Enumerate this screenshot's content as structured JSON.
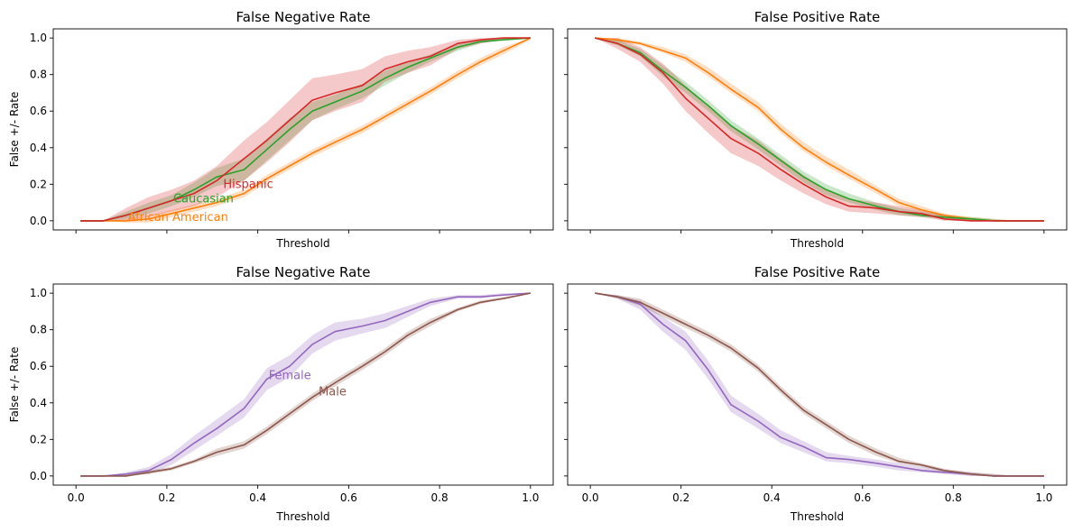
{
  "chart_data": [
    {
      "type": "line",
      "title": "False Negative Rate",
      "xlabel": "Threshold",
      "ylabel": "False +/- Rate",
      "xlim": [
        -0.05,
        1.05
      ],
      "ylim": [
        -0.05,
        1.05
      ],
      "xticks": [
        0.0,
        0.2,
        0.4,
        0.6,
        0.8,
        1.0
      ],
      "xtick_labels_visible": false,
      "yticks": [
        0.0,
        0.2,
        0.4,
        0.6,
        0.8,
        1.0
      ],
      "ytick_labels": [
        "0.0",
        "0.2",
        "0.4",
        "0.6",
        "0.8",
        "1.0"
      ],
      "grid": false,
      "legend": "inline labels",
      "x": [
        0.01,
        0.06,
        0.11,
        0.16,
        0.21,
        0.26,
        0.31,
        0.37,
        0.42,
        0.47,
        0.52,
        0.57,
        0.63,
        0.68,
        0.73,
        0.78,
        0.84,
        0.89,
        0.94,
        1.0
      ],
      "series": [
        {
          "name": "African American",
          "color": "#ff7f0e",
          "label_value": [
            0.11,
            0.0
          ],
          "values": [
            0.0,
            0.0,
            0.0,
            0.01,
            0.04,
            0.07,
            0.1,
            0.15,
            0.23,
            0.3,
            0.37,
            0.43,
            0.5,
            0.57,
            0.64,
            0.71,
            0.8,
            0.87,
            0.93,
            1.0
          ],
          "lower": [
            0.0,
            0.0,
            -0.01,
            -0.01,
            0.02,
            0.05,
            0.08,
            0.13,
            0.21,
            0.28,
            0.35,
            0.41,
            0.48,
            0.55,
            0.62,
            0.69,
            0.78,
            0.85,
            0.91,
            0.99
          ],
          "upper": [
            0.0,
            0.0,
            0.01,
            0.03,
            0.06,
            0.09,
            0.12,
            0.17,
            0.25,
            0.32,
            0.39,
            0.45,
            0.52,
            0.59,
            0.66,
            0.73,
            0.82,
            0.89,
            0.95,
            1.0
          ]
        },
        {
          "name": "Caucasian",
          "color": "#2ca02c",
          "label_value": [
            0.21,
            0.1
          ],
          "values": [
            0.0,
            0.0,
            0.03,
            0.07,
            0.11,
            0.17,
            0.24,
            0.28,
            0.39,
            0.5,
            0.6,
            0.65,
            0.71,
            0.78,
            0.84,
            0.89,
            0.95,
            0.98,
            0.99,
            1.0
          ],
          "lower": [
            0.0,
            0.0,
            0.01,
            0.04,
            0.08,
            0.13,
            0.19,
            0.22,
            0.33,
            0.44,
            0.55,
            0.61,
            0.67,
            0.74,
            0.81,
            0.87,
            0.93,
            0.97,
            0.99,
            1.0
          ],
          "upper": [
            0.0,
            0.0,
            0.05,
            0.1,
            0.14,
            0.21,
            0.29,
            0.34,
            0.45,
            0.56,
            0.65,
            0.69,
            0.75,
            0.82,
            0.87,
            0.91,
            0.97,
            0.99,
            1.0,
            1.0
          ]
        },
        {
          "name": "Hispanic",
          "color": "#d62728",
          "label_value": [
            0.32,
            0.18
          ],
          "values": [
            0.0,
            0.0,
            0.03,
            0.07,
            0.11,
            0.15,
            0.22,
            0.34,
            0.44,
            0.55,
            0.66,
            0.7,
            0.74,
            0.83,
            0.87,
            0.9,
            0.97,
            0.99,
            1.0,
            1.0
          ],
          "lower": [
            0.0,
            0.0,
            0.0,
            0.02,
            0.05,
            0.08,
            0.13,
            0.22,
            0.32,
            0.43,
            0.55,
            0.6,
            0.65,
            0.76,
            0.81,
            0.85,
            0.94,
            0.97,
            0.99,
            1.0
          ],
          "upper": [
            0.0,
            0.0,
            0.07,
            0.13,
            0.17,
            0.22,
            0.3,
            0.44,
            0.54,
            0.66,
            0.78,
            0.8,
            0.83,
            0.9,
            0.93,
            0.95,
            0.99,
            1.0,
            1.0,
            1.0
          ]
        }
      ]
    },
    {
      "type": "line",
      "title": "False Positive Rate",
      "xlabel": "Threshold",
      "ylabel": "",
      "xlim": [
        -0.05,
        1.05
      ],
      "ylim": [
        -0.05,
        1.05
      ],
      "xticks": [
        0.0,
        0.2,
        0.4,
        0.6,
        0.8,
        1.0
      ],
      "xtick_labels_visible": false,
      "yticks": [
        0.0,
        0.2,
        0.4,
        0.6,
        0.8,
        1.0
      ],
      "ytick_labels_visible": false,
      "grid": false,
      "x": [
        0.01,
        0.06,
        0.11,
        0.16,
        0.21,
        0.26,
        0.31,
        0.37,
        0.42,
        0.47,
        0.52,
        0.57,
        0.63,
        0.68,
        0.73,
        0.78,
        0.84,
        0.89,
        0.94,
        1.0
      ],
      "series": [
        {
          "name": "African American",
          "color": "#ff7f0e",
          "values": [
            1.0,
            0.99,
            0.97,
            0.93,
            0.89,
            0.81,
            0.72,
            0.62,
            0.5,
            0.4,
            0.32,
            0.25,
            0.17,
            0.1,
            0.06,
            0.03,
            0.01,
            0.0,
            0.0,
            0.0
          ],
          "lower": [
            1.0,
            0.98,
            0.96,
            0.92,
            0.87,
            0.79,
            0.7,
            0.6,
            0.48,
            0.38,
            0.3,
            0.23,
            0.15,
            0.08,
            0.05,
            0.02,
            0.0,
            0.0,
            0.0,
            0.0
          ],
          "upper": [
            1.0,
            1.0,
            0.98,
            0.95,
            0.91,
            0.84,
            0.75,
            0.65,
            0.53,
            0.43,
            0.35,
            0.28,
            0.19,
            0.12,
            0.08,
            0.04,
            0.02,
            0.01,
            0.0,
            0.0
          ]
        },
        {
          "name": "Caucasian",
          "color": "#2ca02c",
          "values": [
            1.0,
            0.97,
            0.92,
            0.82,
            0.73,
            0.63,
            0.52,
            0.42,
            0.33,
            0.24,
            0.17,
            0.12,
            0.08,
            0.05,
            0.03,
            0.02,
            0.01,
            0.0,
            0.0,
            0.0
          ],
          "lower": [
            1.0,
            0.96,
            0.9,
            0.79,
            0.7,
            0.6,
            0.49,
            0.39,
            0.3,
            0.21,
            0.14,
            0.1,
            0.06,
            0.03,
            0.02,
            0.01,
            0.0,
            0.0,
            0.0,
            0.0
          ],
          "upper": [
            1.0,
            0.99,
            0.94,
            0.85,
            0.76,
            0.66,
            0.55,
            0.45,
            0.36,
            0.27,
            0.2,
            0.15,
            0.1,
            0.07,
            0.05,
            0.03,
            0.02,
            0.01,
            0.0,
            0.0
          ]
        },
        {
          "name": "Hispanic",
          "color": "#d62728",
          "values": [
            1.0,
            0.97,
            0.91,
            0.81,
            0.67,
            0.56,
            0.45,
            0.37,
            0.28,
            0.2,
            0.13,
            0.08,
            0.07,
            0.05,
            0.04,
            0.01,
            0.0,
            0.0,
            0.0,
            0.0
          ],
          "lower": [
            1.0,
            0.94,
            0.87,
            0.75,
            0.6,
            0.48,
            0.37,
            0.3,
            0.22,
            0.15,
            0.09,
            0.05,
            0.04,
            0.03,
            0.02,
            0.0,
            0.0,
            0.0,
            0.0,
            0.0
          ],
          "upper": [
            1.0,
            1.0,
            0.95,
            0.86,
            0.74,
            0.63,
            0.52,
            0.44,
            0.34,
            0.25,
            0.17,
            0.12,
            0.1,
            0.08,
            0.06,
            0.03,
            0.01,
            0.0,
            0.0,
            0.0
          ]
        }
      ]
    },
    {
      "type": "line",
      "title": "False Negative Rate",
      "xlabel": "Threshold",
      "ylabel": "False +/- Rate",
      "xlim": [
        -0.05,
        1.05
      ],
      "ylim": [
        -0.05,
        1.05
      ],
      "xticks": [
        0.0,
        0.2,
        0.4,
        0.6,
        0.8,
        1.0
      ],
      "xtick_labels": [
        "0.0",
        "0.2",
        "0.4",
        "0.6",
        "0.8",
        "1.0"
      ],
      "yticks": [
        0.0,
        0.2,
        0.4,
        0.6,
        0.8,
        1.0
      ],
      "ytick_labels": [
        "0.0",
        "0.2",
        "0.4",
        "0.6",
        "0.8",
        "1.0"
      ],
      "grid": false,
      "legend": "inline labels",
      "x": [
        0.01,
        0.06,
        0.11,
        0.16,
        0.21,
        0.26,
        0.31,
        0.37,
        0.42,
        0.47,
        0.52,
        0.57,
        0.63,
        0.68,
        0.73,
        0.78,
        0.84,
        0.89,
        0.94,
        1.0
      ],
      "series": [
        {
          "name": "Female",
          "color": "#9467bd",
          "label_value": [
            0.42,
            0.53
          ],
          "values": [
            0.0,
            0.0,
            0.01,
            0.03,
            0.09,
            0.18,
            0.26,
            0.37,
            0.53,
            0.6,
            0.72,
            0.79,
            0.82,
            0.85,
            0.9,
            0.95,
            0.98,
            0.98,
            0.99,
            1.0
          ],
          "lower": [
            0.0,
            0.0,
            0.0,
            0.01,
            0.06,
            0.14,
            0.22,
            0.32,
            0.47,
            0.54,
            0.67,
            0.74,
            0.78,
            0.81,
            0.87,
            0.93,
            0.97,
            0.97,
            0.99,
            1.0
          ],
          "upper": [
            0.0,
            0.0,
            0.02,
            0.05,
            0.12,
            0.22,
            0.31,
            0.42,
            0.59,
            0.66,
            0.77,
            0.84,
            0.86,
            0.89,
            0.93,
            0.97,
            0.99,
            0.99,
            1.0,
            1.0
          ]
        },
        {
          "name": "Male",
          "color": "#8c564b",
          "label_value": [
            0.53,
            0.44
          ],
          "values": [
            0.0,
            0.0,
            0.0,
            0.02,
            0.04,
            0.08,
            0.13,
            0.17,
            0.25,
            0.34,
            0.43,
            0.51,
            0.6,
            0.68,
            0.77,
            0.84,
            0.91,
            0.95,
            0.97,
            1.0
          ],
          "lower": [
            0.0,
            0.0,
            0.0,
            0.01,
            0.03,
            0.07,
            0.11,
            0.15,
            0.23,
            0.32,
            0.41,
            0.49,
            0.58,
            0.66,
            0.75,
            0.82,
            0.9,
            0.94,
            0.97,
            1.0
          ],
          "upper": [
            0.0,
            0.0,
            0.01,
            0.03,
            0.05,
            0.09,
            0.15,
            0.19,
            0.27,
            0.36,
            0.45,
            0.53,
            0.62,
            0.7,
            0.79,
            0.86,
            0.92,
            0.96,
            0.98,
            1.0
          ]
        }
      ]
    },
    {
      "type": "line",
      "title": "False Positive Rate",
      "xlabel": "Threshold",
      "ylabel": "",
      "xlim": [
        -0.05,
        1.05
      ],
      "ylim": [
        -0.05,
        1.05
      ],
      "xticks": [
        0.0,
        0.2,
        0.4,
        0.6,
        0.8,
        1.0
      ],
      "xtick_labels": [
        "0.0",
        "0.2",
        "0.4",
        "0.6",
        "0.8",
        "1.0"
      ],
      "yticks": [
        0.0,
        0.2,
        0.4,
        0.6,
        0.8,
        1.0
      ],
      "ytick_labels_visible": false,
      "grid": false,
      "x": [
        0.01,
        0.06,
        0.11,
        0.16,
        0.21,
        0.26,
        0.31,
        0.37,
        0.42,
        0.47,
        0.52,
        0.57,
        0.63,
        0.68,
        0.73,
        0.78,
        0.84,
        0.89,
        0.94,
        1.0
      ],
      "series": [
        {
          "name": "Female",
          "color": "#9467bd",
          "values": [
            1.0,
            0.98,
            0.94,
            0.83,
            0.74,
            0.58,
            0.39,
            0.3,
            0.21,
            0.16,
            0.1,
            0.09,
            0.07,
            0.05,
            0.03,
            0.02,
            0.01,
            0.0,
            0.0,
            0.0
          ],
          "lower": [
            1.0,
            0.97,
            0.91,
            0.79,
            0.69,
            0.53,
            0.35,
            0.26,
            0.18,
            0.13,
            0.08,
            0.07,
            0.05,
            0.03,
            0.02,
            0.01,
            0.0,
            0.0,
            0.0,
            0.0
          ],
          "upper": [
            1.0,
            0.99,
            0.96,
            0.87,
            0.79,
            0.63,
            0.44,
            0.34,
            0.25,
            0.19,
            0.13,
            0.11,
            0.09,
            0.07,
            0.05,
            0.03,
            0.02,
            0.01,
            0.0,
            0.0
          ]
        },
        {
          "name": "Male",
          "color": "#8c564b",
          "values": [
            1.0,
            0.98,
            0.95,
            0.89,
            0.83,
            0.77,
            0.7,
            0.59,
            0.47,
            0.36,
            0.28,
            0.2,
            0.13,
            0.08,
            0.06,
            0.03,
            0.01,
            0.0,
            0.0,
            0.0
          ],
          "lower": [
            1.0,
            0.97,
            0.93,
            0.87,
            0.81,
            0.75,
            0.68,
            0.57,
            0.45,
            0.34,
            0.26,
            0.18,
            0.11,
            0.07,
            0.05,
            0.02,
            0.0,
            0.0,
            0.0,
            0.0
          ],
          "upper": [
            1.0,
            0.99,
            0.97,
            0.91,
            0.85,
            0.79,
            0.72,
            0.61,
            0.49,
            0.38,
            0.3,
            0.22,
            0.15,
            0.1,
            0.07,
            0.04,
            0.02,
            0.01,
            0.0,
            0.0
          ]
        }
      ]
    }
  ]
}
